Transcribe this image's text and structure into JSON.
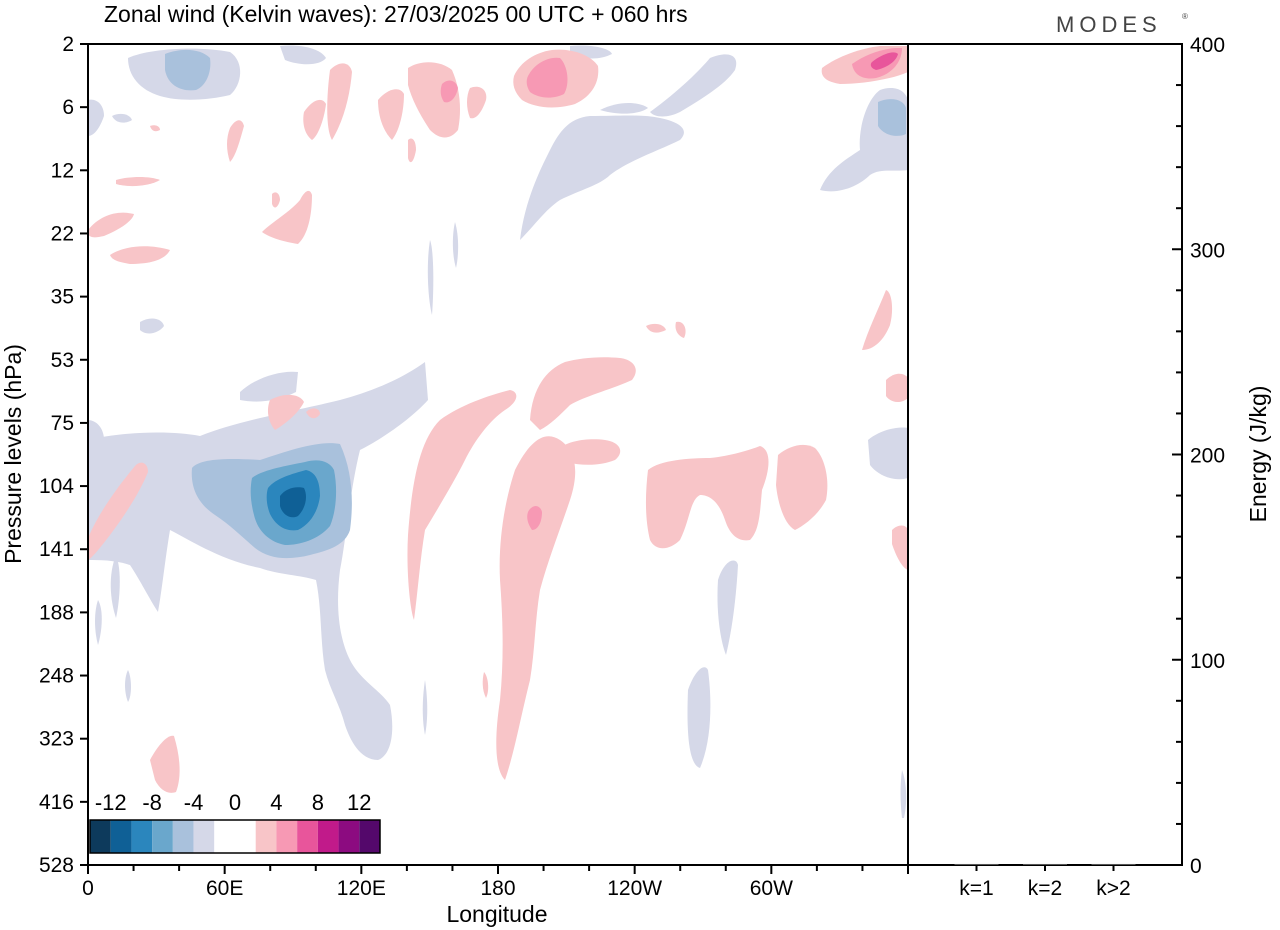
{
  "chart_data": [
    {
      "type": "heatmap",
      "title": "Zonal wind (Kelvin waves):  27/03/2025  00 UTC  + 060 hrs",
      "xlabel": "Longitude",
      "ylabel": "Pressure levels (hPa)",
      "x_ticks": [
        "0",
        "60E",
        "120E",
        "180",
        "120W",
        "60W"
      ],
      "y_ticks": [
        "2",
        "6",
        "12",
        "22",
        "35",
        "53",
        "75",
        "104",
        "141",
        "188",
        "248",
        "323",
        "416",
        "528"
      ],
      "y_axis_order": "top-to-bottom",
      "colorbar": {
        "labels": [
          "-12",
          "-8",
          "-4",
          "0",
          "4",
          "8",
          "12"
        ],
        "colors": [
          "#0d3a5c",
          "#0f6096",
          "#2b86bd",
          "#6aa7cc",
          "#a9c1dc",
          "#d5d8e8",
          "#ffffff",
          "#ffffff",
          "#f8c5c8",
          "#f799b4",
          "#e8559b",
          "#c11a8a",
          "#8c0b80",
          "#54086b"
        ],
        "placement": "bottom-left"
      },
      "fields": [
        {
          "name": "positive-weak",
          "color": "#f8c5c8"
        },
        {
          "name": "positive-moderate",
          "color": "#f799b4"
        },
        {
          "name": "positive-strong",
          "color": "#e8559b"
        },
        {
          "name": "negative-weak",
          "color": "#d5d8e8"
        },
        {
          "name": "negative-moderate",
          "color": "#a9c1dc"
        },
        {
          "name": "negative-strong",
          "color": "#6aa7cc"
        },
        {
          "name": "negative-stronger",
          "color": "#2b86bd"
        },
        {
          "name": "negative-strongest",
          "color": "#0f6096"
        }
      ]
    },
    {
      "type": "bar",
      "categories": [
        "k=1",
        "k=2",
        "k>2"
      ],
      "values": [
        0.5,
        0.5,
        0.5
      ],
      "ylabel": "Energy (J/kg)",
      "ylim": [
        0,
        400
      ],
      "y_ticks": [
        "0",
        "100",
        "200",
        "300",
        "400"
      ],
      "y_minor_step": 20
    }
  ],
  "logo": {
    "text": "MODES",
    "mark": "®"
  }
}
